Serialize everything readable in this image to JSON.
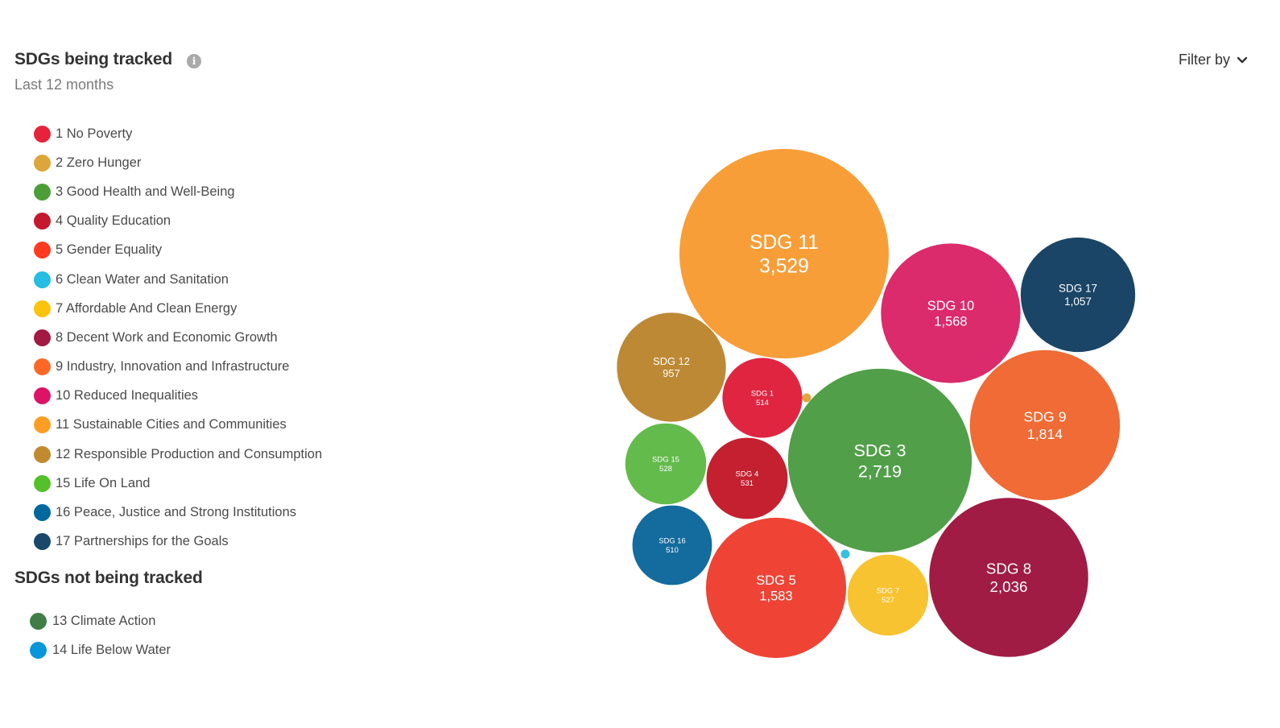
{
  "header": {
    "title": "SDGs being tracked",
    "subtitle": "Last 12 months",
    "info_icon": "info-icon"
  },
  "filter": {
    "label": "Filter by",
    "icon": "chevron-down-icon"
  },
  "tracked_legend": [
    {
      "label": "1 No Poverty",
      "color": "#e5243b"
    },
    {
      "label": "2 Zero Hunger",
      "color": "#dda63a"
    },
    {
      "label": "3 Good Health and Well-Being",
      "color": "#4c9f38"
    },
    {
      "label": "4 Quality Education",
      "color": "#c5192d"
    },
    {
      "label": "5 Gender Equality",
      "color": "#ff3a21"
    },
    {
      "label": "6 Clean Water and Sanitation",
      "color": "#26bde2"
    },
    {
      "label": "7 Affordable And Clean Energy",
      "color": "#fcc30b"
    },
    {
      "label": "8 Decent Work and Economic Growth",
      "color": "#a21942"
    },
    {
      "label": "9 Industry, Innovation and Infrastructure",
      "color": "#fd6925"
    },
    {
      "label": "10 Reduced Inequalities",
      "color": "#dd1367"
    },
    {
      "label": "11 Sustainable Cities and Communities",
      "color": "#fd9d24"
    },
    {
      "label": "12 Responsible Production and Consumption",
      "color": "#bf8b2e"
    },
    {
      "label": "15 Life On Land",
      "color": "#56c02b"
    },
    {
      "label": "16 Peace, Justice and Strong Institutions",
      "color": "#00689d"
    },
    {
      "label": "17 Partnerships for the Goals",
      "color": "#19486a"
    }
  ],
  "not_tracked": {
    "title": "SDGs not being tracked",
    "items": [
      {
        "label": "13 Climate Action",
        "color": "#3f7e44"
      },
      {
        "label": "14 Life Below Water",
        "color": "#0a97d9"
      }
    ]
  },
  "chart_data": {
    "type": "bubble",
    "title": "SDGs being tracked",
    "subtitle": "Last 12 months",
    "series": [
      {
        "name": "SDG 11",
        "value": 3529,
        "value_label": "3,529",
        "color": "#f89e38"
      },
      {
        "name": "SDG 3",
        "value": 2719,
        "value_label": "2,719",
        "color": "#519f49"
      },
      {
        "name": "SDG 8",
        "value": 2036,
        "value_label": "2,036",
        "color": "#a01c45"
      },
      {
        "name": "SDG 9",
        "value": 1814,
        "value_label": "1,814",
        "color": "#f06b35"
      },
      {
        "name": "SDG 5",
        "value": 1583,
        "value_label": "1,583",
        "color": "#ef4335"
      },
      {
        "name": "SDG 10",
        "value": 1568,
        "value_label": "1,568",
        "color": "#db2b6c"
      },
      {
        "name": "SDG 17",
        "value": 1057,
        "value_label": "1,057",
        "color": "#1a4566"
      },
      {
        "name": "SDG 12",
        "value": 957,
        "value_label": "957",
        "color": "#bd8935"
      },
      {
        "name": "SDG 4",
        "value": 531,
        "value_label": "531",
        "color": "#c42030"
      },
      {
        "name": "SDG 15",
        "value": 528,
        "value_label": "528",
        "color": "#63bb4b"
      },
      {
        "name": "SDG 7",
        "value": 527,
        "value_label": "527",
        "color": "#f8c331"
      },
      {
        "name": "SDG 1",
        "value": 514,
        "value_label": "514",
        "color": "#e02541"
      },
      {
        "name": "SDG 16",
        "value": 510,
        "value_label": "510",
        "color": "#136b9e"
      },
      {
        "name": "SDG 6",
        "value": 5,
        "value_label": "",
        "color": "#35bfe3"
      },
      {
        "name": "SDG 2",
        "value": 2,
        "value_label": "",
        "color": "#e0a53f"
      }
    ]
  }
}
